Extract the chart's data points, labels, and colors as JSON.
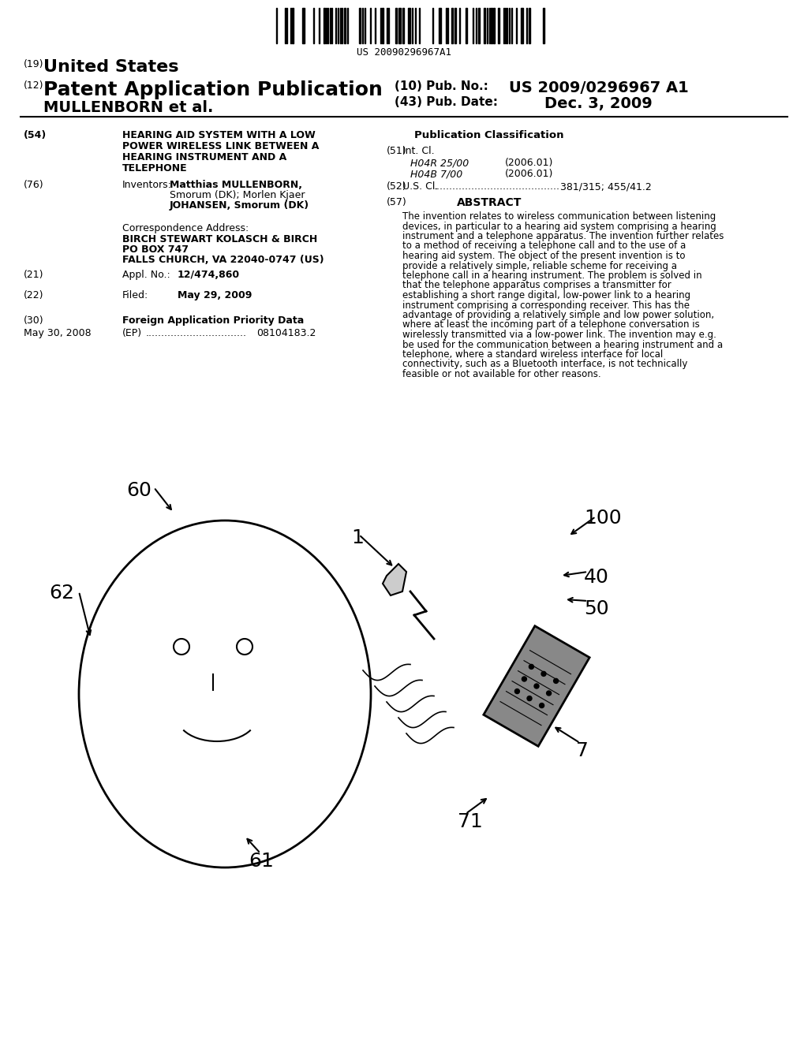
{
  "background_color": "#ffffff",
  "barcode_text": "US 20090296967A1",
  "header_left_small": "(19)",
  "header_left_title": "United States",
  "header_left_subtitle_num": "(12)",
  "header_left_subtitle": "Patent Application Publication",
  "header_left_name": "MULLENBORN et al.",
  "header_right_pub_num_label": "(10) Pub. No.:",
  "header_right_pub_num": "US 2009/0296967 A1",
  "header_right_date_label": "(43) Pub. Date:",
  "header_right_date": "Dec. 3, 2009",
  "title_num": "(54)",
  "title_text": "HEARING AID SYSTEM WITH A LOW\nPOWER WIRELESS LINK BETWEEN A\nHEARING INSTRUMENT AND A\nTELEPHONE",
  "inventors_num": "(76)",
  "inventors_label": "Inventors:",
  "inventors_text": "Matthias MULLENBORN,\nSmorum (DK); Morlen Kjaer\nJOHANSEN, Smorum (DK)",
  "corr_label": "Correspondence Address:",
  "corr_text": "BIRCH STEWART KOLASCH & BIRCH\nPO BOX 747\nFALLS CHURCH, VA 22040-0747 (US)",
  "appl_num": "(21)",
  "appl_label": "Appl. No.:",
  "appl_value": "12/474,860",
  "filed_num": "(22)",
  "filed_label": "Filed:",
  "filed_value": "May 29, 2009",
  "foreign_num": "(30)",
  "foreign_label": "Foreign Application Priority Data",
  "foreign_date": "May 30, 2008",
  "foreign_country": "(EP)",
  "foreign_dots": "................................",
  "foreign_number": "08104183.2",
  "pub_class_title": "Publication Classification",
  "int_cl_num": "(51)",
  "int_cl_label": "Int. Cl.",
  "int_cl_1_code": "H04R 25/00",
  "int_cl_1_year": "(2006.01)",
  "int_cl_2_code": "H04B 7/00",
  "int_cl_2_year": "(2006.01)",
  "us_cl_num": "(52)",
  "us_cl_label": "U.S. Cl.",
  "us_cl_dots": "........................................",
  "us_cl_value": "381/315; 455/41.2",
  "abstract_num": "(57)",
  "abstract_title": "ABSTRACT",
  "abstract_text": "The invention relates to wireless communication between listening devices, in particular to a hearing aid system comprising a hearing instrument and a telephone apparatus. The invention further relates to a method of receiving a telephone call and to the use of a hearing aid system. The object of the present invention is to provide a relatively simple, reliable scheme for receiving a telephone call in a hearing instrument. The problem is solved in that the telephone apparatus comprises a transmitter for establishing a short range digital, low-power link to a hearing instrument comprising a corresponding receiver. This has the advantage of providing a relatively simple and low power solution, where at least the incoming part of a telephone conversation is wirelessly transmitted via a low-power link. The invention may e.g. be used for the communication between a hearing instrument and a telephone, where a standard wireless interface for local connectivity, such as a Bluetooth interface, is not technically feasible or not available for other reasons."
}
